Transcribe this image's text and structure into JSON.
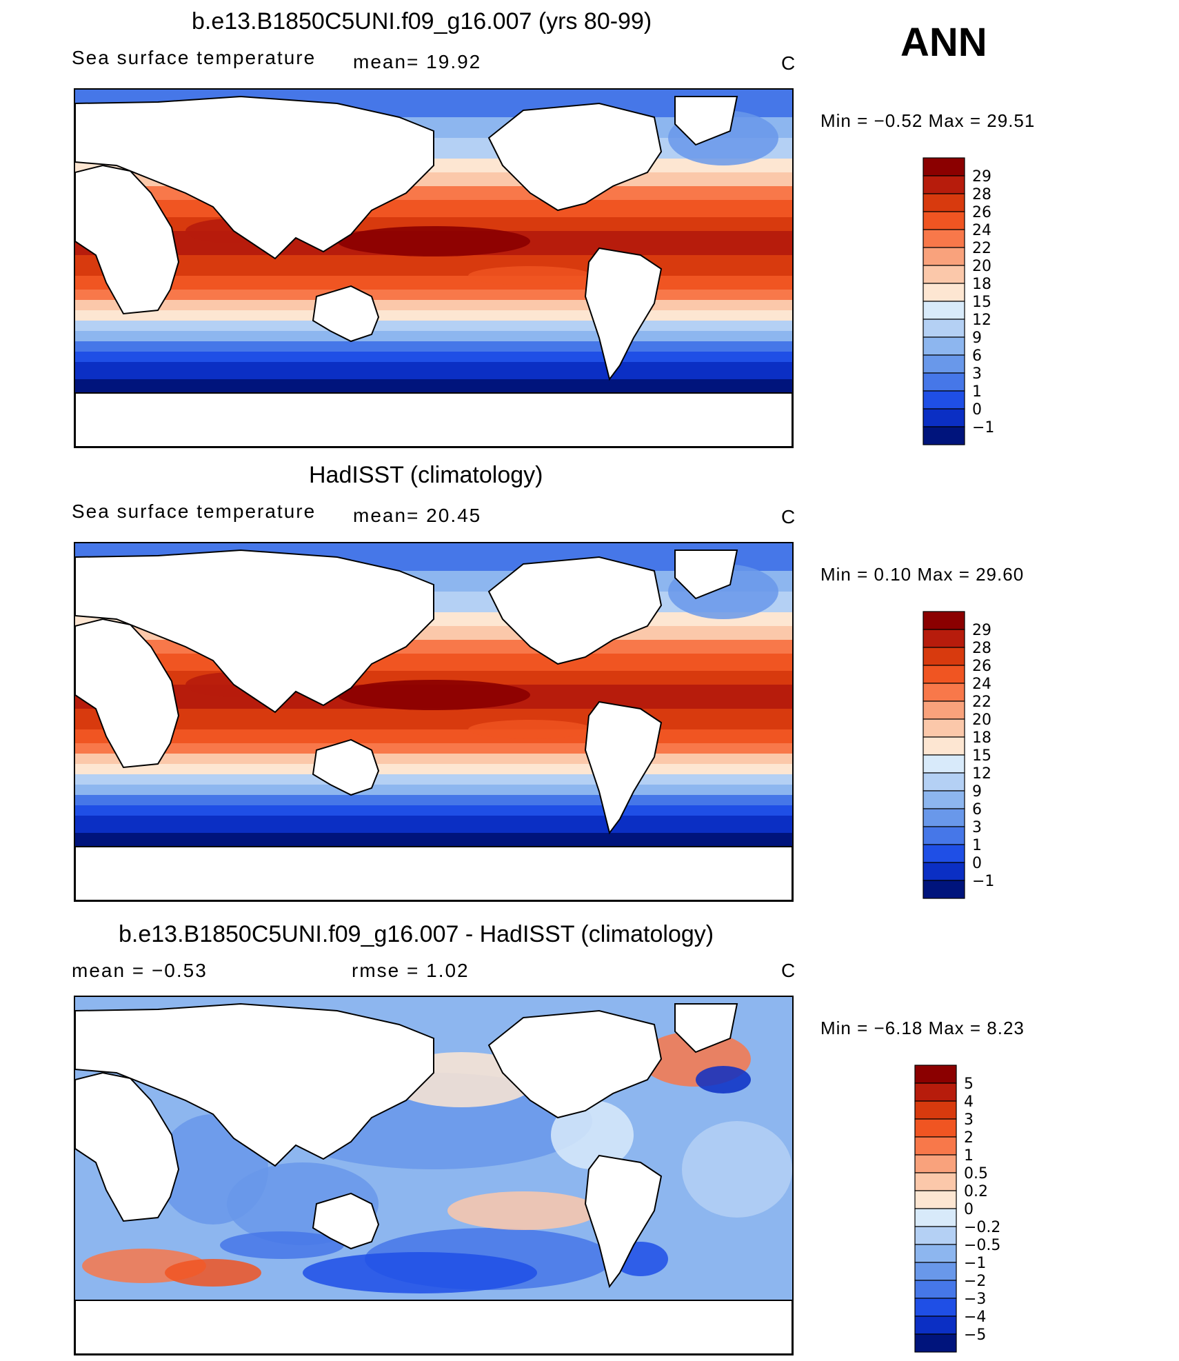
{
  "season": "ANN",
  "panels": [
    {
      "title": "b.e13.B1850C5UNI.f09_g16.007 (yrs 80-99)",
      "variable": "Sea surface temperature",
      "stat": "mean=   19.92",
      "units": "C",
      "min_max": "Min =   −0.52  Max =   29.51",
      "levels": [
        "29",
        "28",
        "26",
        "24",
        "22",
        "20",
        "18",
        "15",
        "12",
        "9",
        "6",
        "3",
        "1",
        "0",
        "−1"
      ],
      "colors": [
        "#8b0000",
        "#b71c0c",
        "#d83a0e",
        "#f05522",
        "#f8784a",
        "#f9a27c",
        "#fbc8aa",
        "#fde6d2",
        "#d8eafa",
        "#b4d0f4",
        "#8db6ef",
        "#6998ea",
        "#4677e8",
        "#1f4fe6",
        "#0b2fc4",
        "#00147c"
      ]
    },
    {
      "title": "HadISST (climatology)",
      "variable": "Sea surface temperature",
      "stat": "mean=   20.45",
      "units": "C",
      "min_max": "Min =    0.10  Max =   29.60",
      "levels": [
        "29",
        "28",
        "26",
        "24",
        "22",
        "20",
        "18",
        "15",
        "12",
        "9",
        "6",
        "3",
        "1",
        "0",
        "−1"
      ],
      "colors": [
        "#8b0000",
        "#b71c0c",
        "#d83a0e",
        "#f05522",
        "#f8784a",
        "#f9a27c",
        "#fbc8aa",
        "#fde6d2",
        "#d8eafa",
        "#b4d0f4",
        "#8db6ef",
        "#6998ea",
        "#4677e8",
        "#1f4fe6",
        "#0b2fc4",
        "#00147c"
      ]
    },
    {
      "title": "b.e13.B1850C5UNI.f09_g16.007 - HadISST (climatology)",
      "variable": "mean =   −0.53",
      "stat": "rmse =    1.02",
      "units": "C",
      "min_max": "Min =   −6.18  Max =    8.23",
      "levels": [
        "5",
        "4",
        "3",
        "2",
        "1",
        "0.5",
        "0.2",
        "0",
        "−0.2",
        "−0.5",
        "−1",
        "−2",
        "−3",
        "−4",
        "−5"
      ],
      "colors": [
        "#8b0000",
        "#b71c0c",
        "#d83a0e",
        "#f05522",
        "#f8784a",
        "#f9a27c",
        "#fbc8aa",
        "#fde6d2",
        "#d8eafa",
        "#b4d0f4",
        "#8db6ef",
        "#6998ea",
        "#4677e8",
        "#1f4fe6",
        "#0b2fc4",
        "#00147c"
      ]
    }
  ]
}
